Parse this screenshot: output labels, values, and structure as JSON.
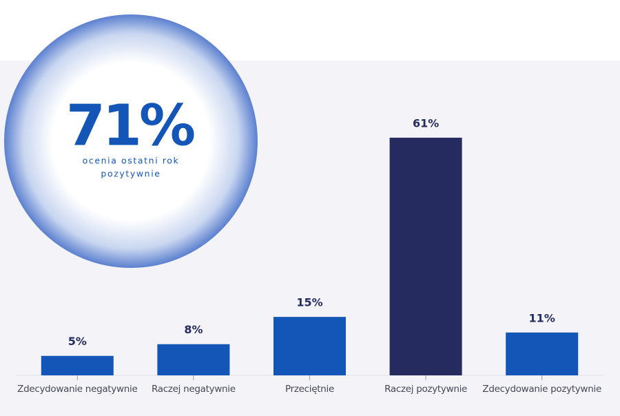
{
  "chart_data": {
    "type": "bar",
    "categories": [
      "Zdecydowanie negatywnie",
      "Raczej negatywnie",
      "Przeciętnie",
      "Raczej pozytywnie",
      "Zdecydowanie pozytywnie"
    ],
    "values": [
      5,
      8,
      15,
      61,
      11
    ],
    "value_labels": [
      "5%",
      "8%",
      "15%",
      "61%",
      "11%"
    ],
    "colors": [
      "#1356b8",
      "#1356b8",
      "#1356b8",
      "#252b5e",
      "#1356b8"
    ],
    "ylim": [
      0,
      70
    ],
    "highlight": "71%",
    "highlight_caption": [
      "ocenia ostatni rok",
      "pozytywnie"
    ]
  }
}
